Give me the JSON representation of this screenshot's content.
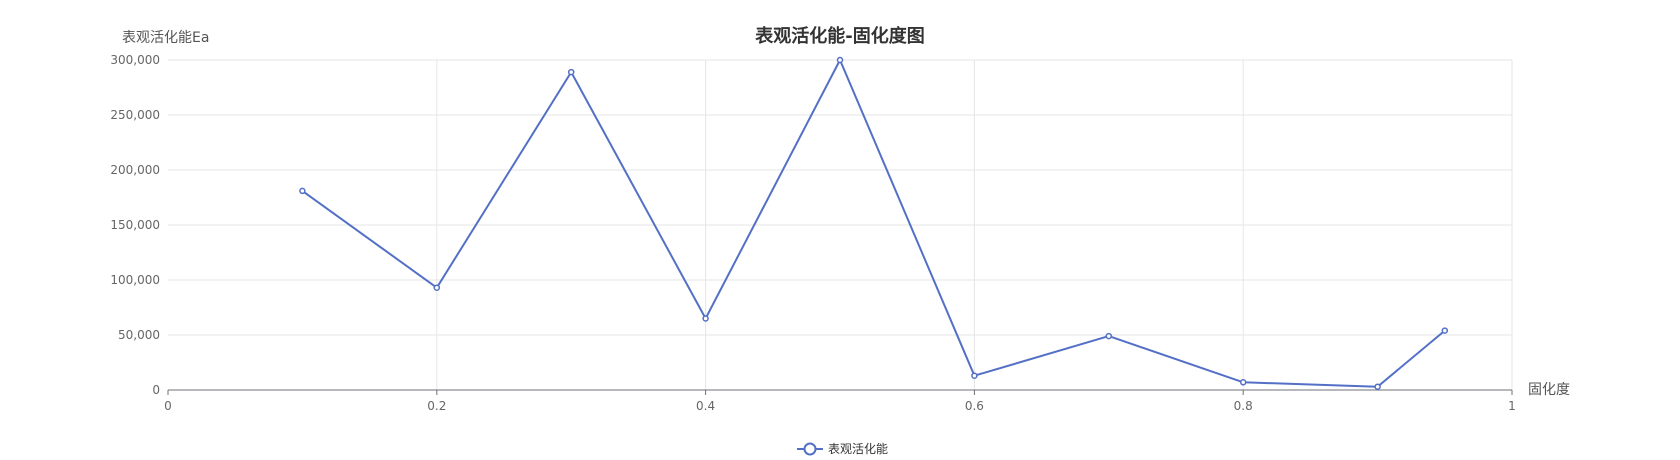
{
  "chart_data": {
    "type": "line",
    "title": "表观活化能-固化度图",
    "xlabel": "固化度",
    "ylabel": "表观活化能Ea",
    "xlim": [
      0,
      1
    ],
    "ylim": [
      0,
      300000
    ],
    "x_ticks": [
      "0",
      "0.2",
      "0.4",
      "0.6",
      "0.8",
      "1"
    ],
    "y_ticks": [
      "0",
      "50,000",
      "100,000",
      "150,000",
      "200,000",
      "250,000",
      "300,000"
    ],
    "grid": true,
    "legend_position": "bottom-center",
    "series": [
      {
        "name": "表观活化能",
        "color": "#5470c6",
        "points": [
          {
            "x": 0.1,
            "y": 181000
          },
          {
            "x": 0.2,
            "y": 93000
          },
          {
            "x": 0.3,
            "y": 289000
          },
          {
            "x": 0.4,
            "y": 65000
          },
          {
            "x": 0.5,
            "y": 300000
          },
          {
            "x": 0.6,
            "y": 13000
          },
          {
            "x": 0.7,
            "y": 49000
          },
          {
            "x": 0.8,
            "y": 7000
          },
          {
            "x": 0.9,
            "y": 3000
          },
          {
            "x": 0.95,
            "y": 54000
          }
        ]
      }
    ]
  }
}
